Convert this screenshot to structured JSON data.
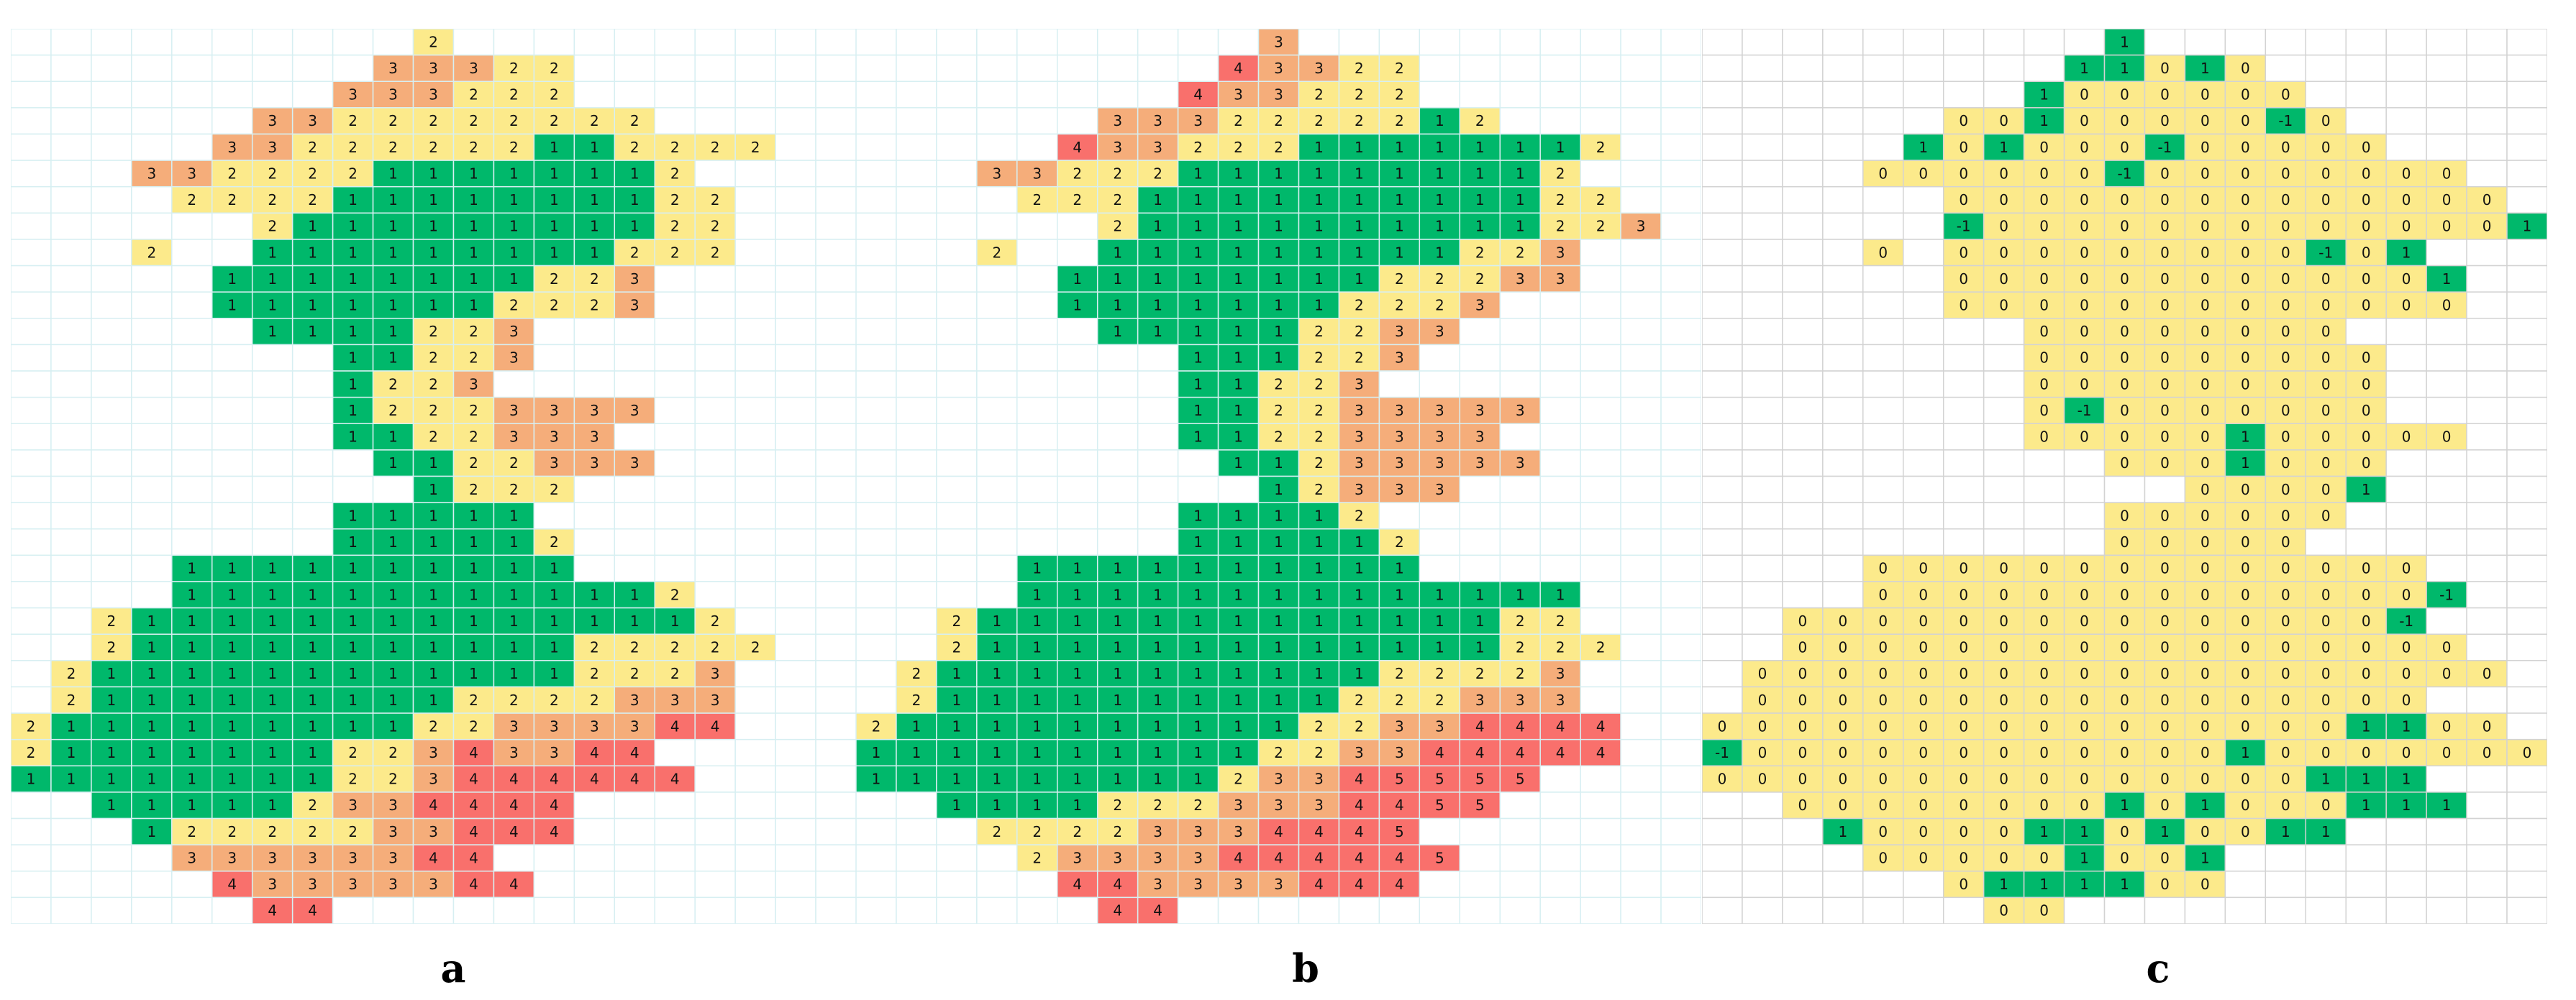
{
  "colors": {
    "-1": "#00b86b",
    "0": "#fcea8b",
    "1": "#00b86b",
    "2": "#fcea8b",
    "3": "#f5ad7a",
    "4": "#f9706c",
    "5": "#f9706c",
    "grid_light": "#d7eff2",
    "grid_plain": "#d3d3d3"
  },
  "panels": [
    {
      "caption": "a",
      "rows": [
        "..........2..........",
        ".........33322.......",
        "........333222.......",
        "......3322222222.....",
        ".....33222222112222..",
        "...33222211111112....",
        "....22221111111122...",
        "......211111111122...",
        "...2..111111111222...",
        ".....11111111223.....",
        ".....11111112223.....",
        "......1111223........",
        "........11223........",
        "........1223.........",
        "........12223333.....",
        "........1122333......",
        ".........1122333.....",
        "..........1222.......",
        "........11111........",
        "........111112.......",
        "....1111111111.......",
        "....1111111111112....",
        "..2111111111111112...",
        "..21111111111122222..",
        ".21111111111112223...",
        ".21111111112222333...",
        "211111111122333344...",
        "2111111122343344.....",
        "11111111223444444....",
        "..111112334444.......",
        "...12222233444.......",
        "....33333344.........",
        ".....43333344........",
        "......44............."
      ]
    },
    {
      "caption": "b",
      "rows": [
        "..........3..........",
        ".........43322.......",
        "........433222.......",
        "......3332222212.....",
        ".....43322211111112..",
        "...332221111111112...",
        "....222111111111122..",
        "......21111111111223.",
        "...2..111111111223...",
        ".....1111111122233...",
        ".....11111112223.....",
        "......111112233......",
        "........111223.......",
        "........11223........",
        "........112233333....",
        "........11223333.....",
        ".........11233333....",
        "..........12333......",
        "........11112........",
        "........111112.......",
        "....1111111111.......",
        "....11111111111111...",
        "..2111111111111122...",
        "..21111111111111222..",
        ".21111111111122223...",
        ".21111111111222333...",
        "2111111111122334444..",
        "1111111111223344444..",
        "11111111123345555....",
        "..11112223334455.....",
        "...22223334445.......",
        "....23333444445......",
        ".....443333444.......",
        "......44............."
      ]
    },
    {
      "caption": "c",
      "rows": [
        "..........1..........",
        ".........11010.......",
        "........1000000......",
        "......00100000#0.....",
        ".....101000#00000....",
        "....000000#00000000..",
        "......00000000000000.",
        "......#00000000000001",
        "....0.000000000#01...",
        "......0000000000001..",
        "......0000000000000..",
        "........00000000.....",
        "........000000000....",
        "........000000000....",
        "........0#0000000....",
        "........00000100000..",
        "..........0001000....",
        "............00001....",
        "..........000000.....",
        "..........00000......",
        "....00000000000000...",
        "....00000000000000#..",
        "..000000000000000#...",
        "..00000000000000000..",
        ".0000000000000000000.",
        ".00000000000000000...",
        "00000000000000001100.",
        "#00000000000010000000",
        "000000000000000111...",
        "..00000000101000111..",
        "...1000011010011.....",
        "....000001001........",
        "......0111100........",
        ".......00............"
      ]
    }
  ]
}
